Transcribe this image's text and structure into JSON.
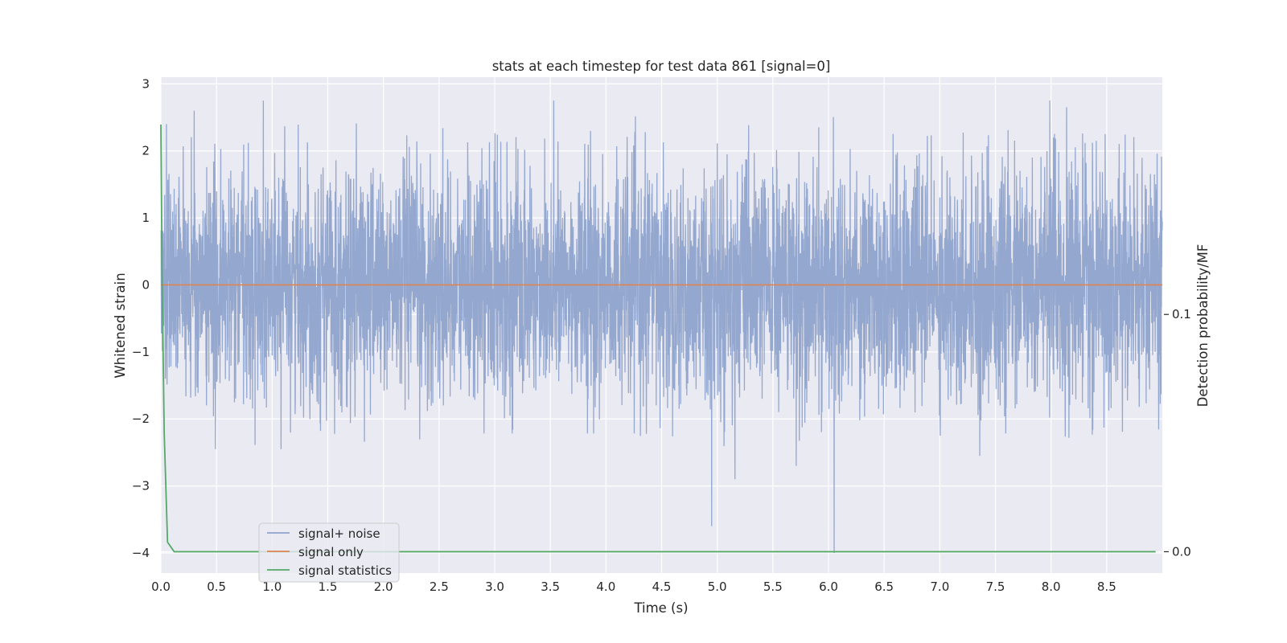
{
  "chart_data": {
    "type": "line",
    "title": "stats at each timestep for test data 861 [signal=0]",
    "xlabel": "Time (s)",
    "ylabel": "Whitened strain",
    "y2label": "Detection probability/MF",
    "xlim": [
      0.0,
      9.0
    ],
    "ylim": [
      -4.3,
      3.1
    ],
    "y2lim": [
      -0.009,
      0.2
    ],
    "xticks": [
      0.0,
      0.5,
      1.0,
      1.5,
      2.0,
      2.5,
      3.0,
      3.5,
      4.0,
      4.5,
      5.0,
      5.5,
      6.0,
      6.5,
      7.0,
      7.5,
      8.0,
      8.5
    ],
    "xtick_labels": [
      "0.0",
      "0.5",
      "1.0",
      "1.5",
      "2.0",
      "2.5",
      "3.0",
      "3.5",
      "4.0",
      "4.5",
      "5.0",
      "5.5",
      "6.0",
      "6.5",
      "7.0",
      "7.5",
      "8.0",
      "8.5"
    ],
    "yticks": [
      3,
      2,
      1,
      0,
      -1,
      -2,
      -3,
      -4
    ],
    "ytick_labels": [
      "3",
      "2",
      "1",
      "0",
      "−1",
      "−2",
      "−3",
      "−4"
    ],
    "y2ticks": [
      0.1,
      0.0
    ],
    "y2tick_labels": [
      "0.1",
      "0.0"
    ],
    "grid": true,
    "legend_position": "lower-left",
    "colors": {
      "plot_background": "#eaeaf2",
      "grid": "#ffffff",
      "noise": "#8fa3cc",
      "signal_only": "#dd8452",
      "statistics": "#55a868"
    },
    "series": [
      {
        "name": "signal+ noise",
        "axis": "left",
        "description": "whitened strain noise, roughly Gaussian with amplitude about 0.8 std; notable dips near t=4.95 (-3.6) and t=6.05 (-4.0)",
        "extremes": [
          {
            "x": 0.05,
            "y": 2.4
          },
          {
            "x": 0.3,
            "y": 2.6
          },
          {
            "x": 0.49,
            "y": -2.45
          },
          {
            "x": 0.92,
            "y": 2.75
          },
          {
            "x": 1.08,
            "y": -2.45
          },
          {
            "x": 3.53,
            "y": 2.75
          },
          {
            "x": 4.95,
            "y": -3.6
          },
          {
            "x": 5.16,
            "y": -2.9
          },
          {
            "x": 5.71,
            "y": -2.7
          },
          {
            "x": 6.05,
            "y": -4.0
          },
          {
            "x": 7.36,
            "y": -2.55
          },
          {
            "x": 7.99,
            "y": 2.75
          },
          {
            "x": 8.14,
            "y": 2.65
          }
        ]
      },
      {
        "name": "signal only",
        "axis": "left",
        "x": [
          0.0,
          9.0
        ],
        "y": [
          0.0,
          0.0
        ]
      },
      {
        "name": "signal statistics",
        "axis": "right",
        "x": [
          0.0,
          0.01,
          0.03,
          0.06,
          0.12,
          8.94
        ],
        "y": [
          0.18,
          0.12,
          0.05,
          0.004,
          0.0,
          0.0
        ]
      }
    ]
  }
}
